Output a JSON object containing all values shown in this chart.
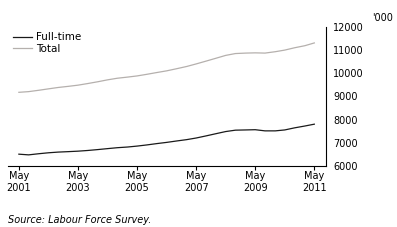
{
  "ylabel_right": "'000",
  "source_text": "Source: Labour Force Survey.",
  "x_tick_years": [
    2001,
    2003,
    2005,
    2007,
    2009,
    2011
  ],
  "ylim": [
    6000,
    12000
  ],
  "yticks": [
    6000,
    7000,
    8000,
    9000,
    10000,
    11000,
    12000
  ],
  "fulltime_color": "#1a1a1a",
  "total_color": "#b5b0ad",
  "legend_labels": [
    "Full-time",
    "Total"
  ],
  "fulltime_data": [
    [
      2001.37,
      6500
    ],
    [
      2001.7,
      6470
    ],
    [
      2002.05,
      6520
    ],
    [
      2002.37,
      6560
    ],
    [
      2002.7,
      6590
    ],
    [
      2003.05,
      6610
    ],
    [
      2003.37,
      6630
    ],
    [
      2003.7,
      6660
    ],
    [
      2004.05,
      6700
    ],
    [
      2004.37,
      6740
    ],
    [
      2004.7,
      6780
    ],
    [
      2005.05,
      6810
    ],
    [
      2005.37,
      6850
    ],
    [
      2005.7,
      6900
    ],
    [
      2006.05,
      6960
    ],
    [
      2006.37,
      7010
    ],
    [
      2006.7,
      7070
    ],
    [
      2007.05,
      7130
    ],
    [
      2007.37,
      7200
    ],
    [
      2007.7,
      7290
    ],
    [
      2008.05,
      7390
    ],
    [
      2008.37,
      7480
    ],
    [
      2008.7,
      7540
    ],
    [
      2009.05,
      7550
    ],
    [
      2009.37,
      7560
    ],
    [
      2009.7,
      7510
    ],
    [
      2010.05,
      7510
    ],
    [
      2010.37,
      7550
    ],
    [
      2010.7,
      7640
    ],
    [
      2011.05,
      7720
    ],
    [
      2011.37,
      7800
    ]
  ],
  "total_data": [
    [
      2001.37,
      9180
    ],
    [
      2001.7,
      9210
    ],
    [
      2002.05,
      9270
    ],
    [
      2002.37,
      9330
    ],
    [
      2002.7,
      9390
    ],
    [
      2003.05,
      9440
    ],
    [
      2003.37,
      9490
    ],
    [
      2003.7,
      9560
    ],
    [
      2004.05,
      9640
    ],
    [
      2004.37,
      9720
    ],
    [
      2004.7,
      9790
    ],
    [
      2005.05,
      9840
    ],
    [
      2005.37,
      9890
    ],
    [
      2005.7,
      9960
    ],
    [
      2006.05,
      10040
    ],
    [
      2006.37,
      10110
    ],
    [
      2006.7,
      10200
    ],
    [
      2007.05,
      10300
    ],
    [
      2007.37,
      10410
    ],
    [
      2007.7,
      10530
    ],
    [
      2008.05,
      10660
    ],
    [
      2008.37,
      10780
    ],
    [
      2008.7,
      10860
    ],
    [
      2009.05,
      10880
    ],
    [
      2009.37,
      10890
    ],
    [
      2009.7,
      10880
    ],
    [
      2010.05,
      10940
    ],
    [
      2010.37,
      11010
    ],
    [
      2010.7,
      11110
    ],
    [
      2011.05,
      11200
    ],
    [
      2011.37,
      11320
    ]
  ],
  "background_color": "#ffffff",
  "spine_color": "#000000",
  "fontsize_ticks": 7,
  "fontsize_legend": 7.5,
  "fontsize_source": 7
}
